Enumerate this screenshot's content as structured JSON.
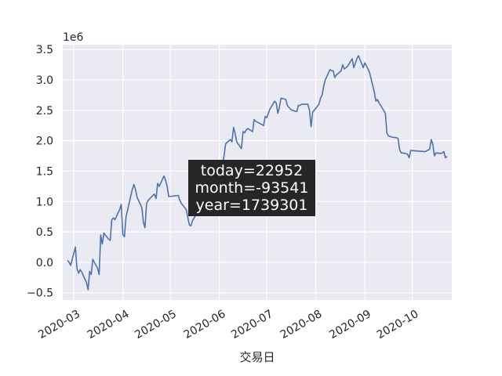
{
  "chart_data": {
    "type": "line",
    "title": "",
    "xlabel": "交易日",
    "ylabel": "",
    "y_scale_label": "1e6",
    "y_multiplier": 1000000,
    "xlim": [
      "2020-02-23",
      "2020-10-26"
    ],
    "ylim": [
      -0.62,
      3.58
    ],
    "grid": true,
    "legend": "none",
    "colors": {
      "background": "#eaeaf2",
      "grid": "#ffffff",
      "line": "#4c72b0",
      "annotation_bg": "#262626",
      "annotation_text": "#ffffff",
      "text": "#262626"
    },
    "x_ticks": [
      {
        "date": "2020-03-01",
        "label": "2020-03"
      },
      {
        "date": "2020-04-01",
        "label": "2020-04"
      },
      {
        "date": "2020-05-01",
        "label": "2020-05"
      },
      {
        "date": "2020-06-01",
        "label": "2020-06"
      },
      {
        "date": "2020-07-01",
        "label": "2020-07"
      },
      {
        "date": "2020-08-01",
        "label": "2020-08"
      },
      {
        "date": "2020-09-01",
        "label": "2020-09"
      },
      {
        "date": "2020-10-01",
        "label": "2020-10"
      }
    ],
    "y_ticks": [
      {
        "value": -0.5,
        "label": "−0.5"
      },
      {
        "value": 0.0,
        "label": "0.0"
      },
      {
        "value": 0.5,
        "label": "0.5"
      },
      {
        "value": 1.0,
        "label": "1.0"
      },
      {
        "value": 1.5,
        "label": "1.5"
      },
      {
        "value": 2.0,
        "label": "2.0"
      },
      {
        "value": 2.5,
        "label": "2.5"
      },
      {
        "value": 3.0,
        "label": "3.0"
      },
      {
        "value": 3.5,
        "label": "3.5"
      }
    ],
    "annotation": [
      "today=22952",
      "month=-93541",
      "year=1739301"
    ],
    "series": [
      {
        "points": [
          [
            "2020-02-26",
            0.03
          ],
          [
            "2020-02-27",
            0.0
          ],
          [
            "2020-02-28",
            -0.05
          ],
          [
            "2020-03-02",
            0.25
          ],
          [
            "2020-03-03",
            -0.1
          ],
          [
            "2020-03-04",
            -0.18
          ],
          [
            "2020-03-05",
            -0.12
          ],
          [
            "2020-03-06",
            -0.16
          ],
          [
            "2020-03-09",
            -0.33
          ],
          [
            "2020-03-10",
            -0.45
          ],
          [
            "2020-03-11",
            -0.15
          ],
          [
            "2020-03-12",
            -0.2
          ],
          [
            "2020-03-13",
            0.05
          ],
          [
            "2020-03-16",
            -0.1
          ],
          [
            "2020-03-17",
            -0.2
          ],
          [
            "2020-03-18",
            0.45
          ],
          [
            "2020-03-19",
            0.3
          ],
          [
            "2020-03-20",
            0.48
          ],
          [
            "2020-03-23",
            0.38
          ],
          [
            "2020-03-24",
            0.36
          ],
          [
            "2020-03-25",
            0.7
          ],
          [
            "2020-03-26",
            0.73
          ],
          [
            "2020-03-27",
            0.7
          ],
          [
            "2020-03-30",
            0.87
          ],
          [
            "2020-03-31",
            0.95
          ],
          [
            "2020-04-01",
            0.46
          ],
          [
            "2020-04-02",
            0.42
          ],
          [
            "2020-04-03",
            0.75
          ],
          [
            "2020-04-07",
            1.2
          ],
          [
            "2020-04-08",
            1.28
          ],
          [
            "2020-04-09",
            1.2
          ],
          [
            "2020-04-10",
            1.07
          ],
          [
            "2020-04-13",
            0.9
          ],
          [
            "2020-04-14",
            0.66
          ],
          [
            "2020-04-15",
            0.57
          ],
          [
            "2020-04-16",
            0.97
          ],
          [
            "2020-04-17",
            1.02
          ],
          [
            "2020-04-20",
            1.1
          ],
          [
            "2020-04-21",
            1.12
          ],
          [
            "2020-04-22",
            1.05
          ],
          [
            "2020-04-23",
            1.3
          ],
          [
            "2020-04-24",
            1.25
          ],
          [
            "2020-04-27",
            1.42
          ],
          [
            "2020-04-28",
            1.35
          ],
          [
            "2020-04-29",
            1.25
          ],
          [
            "2020-04-30",
            1.08
          ],
          [
            "2020-05-06",
            1.1
          ],
          [
            "2020-05-07",
            1.02
          ],
          [
            "2020-05-08",
            0.97
          ],
          [
            "2020-05-11",
            0.87
          ],
          [
            "2020-05-12",
            0.75
          ],
          [
            "2020-05-13",
            0.62
          ],
          [
            "2020-05-14",
            0.6
          ],
          [
            "2020-05-15",
            0.68
          ],
          [
            "2020-05-18",
            0.82
          ],
          [
            "2020-05-19",
            0.9
          ],
          [
            "2020-05-20",
            0.95
          ],
          [
            "2020-05-21",
            0.88
          ],
          [
            "2020-05-22",
            0.98
          ],
          [
            "2020-05-25",
            1.05
          ],
          [
            "2020-05-26",
            1.15
          ],
          [
            "2020-05-27",
            1.2
          ],
          [
            "2020-05-28",
            1.25
          ],
          [
            "2020-05-29",
            1.28
          ],
          [
            "2020-06-01",
            1.4
          ],
          [
            "2020-06-02",
            1.5
          ],
          [
            "2020-06-03",
            1.6
          ],
          [
            "2020-06-04",
            1.75
          ],
          [
            "2020-06-05",
            1.95
          ],
          [
            "2020-06-08",
            2.02
          ],
          [
            "2020-06-09",
            1.98
          ],
          [
            "2020-06-10",
            2.22
          ],
          [
            "2020-06-11",
            2.12
          ],
          [
            "2020-06-12",
            1.98
          ],
          [
            "2020-06-15",
            1.87
          ],
          [
            "2020-06-16",
            2.15
          ],
          [
            "2020-06-17",
            2.13
          ],
          [
            "2020-06-18",
            2.18
          ],
          [
            "2020-06-19",
            2.2
          ],
          [
            "2020-06-22",
            2.15
          ],
          [
            "2020-06-23",
            2.35
          ],
          [
            "2020-06-24",
            2.32
          ],
          [
            "2020-06-29",
            2.25
          ],
          [
            "2020-06-30",
            2.4
          ],
          [
            "2020-07-01",
            2.38
          ],
          [
            "2020-07-02",
            2.45
          ],
          [
            "2020-07-03",
            2.52
          ],
          [
            "2020-07-06",
            2.65
          ],
          [
            "2020-07-07",
            2.62
          ],
          [
            "2020-07-08",
            2.45
          ],
          [
            "2020-07-09",
            2.55
          ],
          [
            "2020-07-10",
            2.7
          ],
          [
            "2020-07-13",
            2.68
          ],
          [
            "2020-07-14",
            2.58
          ],
          [
            "2020-07-15",
            2.55
          ],
          [
            "2020-07-16",
            2.52
          ],
          [
            "2020-07-17",
            2.5
          ],
          [
            "2020-07-20",
            2.48
          ],
          [
            "2020-07-21",
            2.58
          ],
          [
            "2020-07-22",
            2.58
          ],
          [
            "2020-07-23",
            2.6
          ],
          [
            "2020-07-24",
            2.6
          ],
          [
            "2020-07-27",
            2.6
          ],
          [
            "2020-07-28",
            2.5
          ],
          [
            "2020-07-29",
            2.23
          ],
          [
            "2020-07-30",
            2.47
          ],
          [
            "2020-07-31",
            2.5
          ],
          [
            "2020-08-03",
            2.6
          ],
          [
            "2020-08-04",
            2.7
          ],
          [
            "2020-08-05",
            2.75
          ],
          [
            "2020-08-06",
            2.9
          ],
          [
            "2020-08-07",
            3.0
          ],
          [
            "2020-08-10",
            3.17
          ],
          [
            "2020-08-11",
            3.15
          ],
          [
            "2020-08-12",
            3.15
          ],
          [
            "2020-08-13",
            3.04
          ],
          [
            "2020-08-14",
            3.08
          ],
          [
            "2020-08-17",
            3.15
          ],
          [
            "2020-08-18",
            3.25
          ],
          [
            "2020-08-19",
            3.18
          ],
          [
            "2020-08-20",
            3.2
          ],
          [
            "2020-08-21",
            3.22
          ],
          [
            "2020-08-24",
            3.35
          ],
          [
            "2020-08-25",
            3.2
          ],
          [
            "2020-08-26",
            3.27
          ],
          [
            "2020-08-27",
            3.35
          ],
          [
            "2020-08-28",
            3.4
          ],
          [
            "2020-08-31",
            3.2
          ],
          [
            "2020-09-01",
            3.28
          ],
          [
            "2020-09-02",
            3.23
          ],
          [
            "2020-09-03",
            3.18
          ],
          [
            "2020-09-04",
            3.12
          ],
          [
            "2020-09-07",
            2.8
          ],
          [
            "2020-09-08",
            2.65
          ],
          [
            "2020-09-09",
            2.68
          ],
          [
            "2020-09-10",
            2.62
          ],
          [
            "2020-09-11",
            2.58
          ],
          [
            "2020-09-14",
            2.45
          ],
          [
            "2020-09-15",
            2.12
          ],
          [
            "2020-09-16",
            2.08
          ],
          [
            "2020-09-17",
            2.07
          ],
          [
            "2020-09-18",
            2.06
          ],
          [
            "2020-09-21",
            2.05
          ],
          [
            "2020-09-22",
            2.04
          ],
          [
            "2020-09-23",
            1.85
          ],
          [
            "2020-09-24",
            1.8
          ],
          [
            "2020-09-25",
            1.8
          ],
          [
            "2020-09-28",
            1.78
          ],
          [
            "2020-09-29",
            1.72
          ],
          [
            "2020-09-30",
            1.84
          ],
          [
            "2020-10-09",
            1.82
          ],
          [
            "2020-10-12",
            1.86
          ],
          [
            "2020-10-13",
            2.02
          ],
          [
            "2020-10-14",
            1.94
          ],
          [
            "2020-10-15",
            1.75
          ],
          [
            "2020-10-16",
            1.8
          ],
          [
            "2020-10-19",
            1.79
          ],
          [
            "2020-10-20",
            1.8
          ],
          [
            "2020-10-21",
            1.82
          ],
          [
            "2020-10-22",
            1.72
          ],
          [
            "2020-10-23",
            1.74
          ]
        ]
      }
    ]
  }
}
